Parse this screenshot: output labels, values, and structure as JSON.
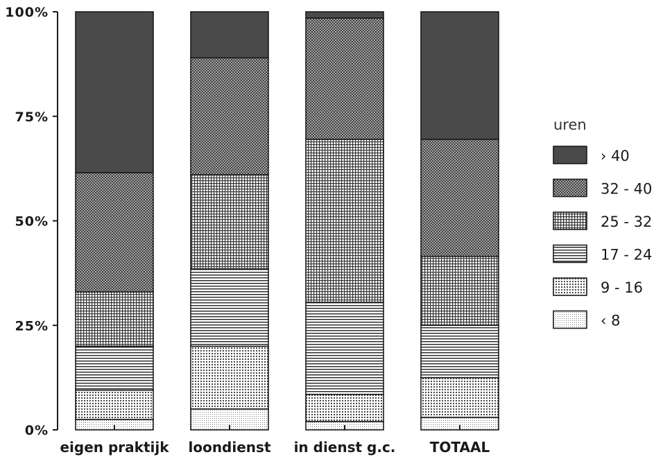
{
  "chart_data": {
    "type": "bar",
    "stacked": true,
    "normalized_percent": true,
    "categories": [
      "eigen praktijk",
      "loondienst",
      "in dienst g.c.",
      "TOTAAL"
    ],
    "series": [
      {
        "name": "‹ 8",
        "pattern": "fine-dots",
        "values": [
          2.5,
          5,
          2,
          3
        ]
      },
      {
        "name": "9 - 16",
        "pattern": "dots",
        "values": [
          7,
          15,
          6.5,
          9.5
        ]
      },
      {
        "name": "17 - 24",
        "pattern": "hlines",
        "values": [
          10.5,
          18.5,
          22,
          12.5
        ]
      },
      {
        "name": "25 - 32",
        "pattern": "grid",
        "values": [
          13,
          22.5,
          39,
          16.5
        ]
      },
      {
        "name": "32 - 40",
        "pattern": "crosshatch",
        "values": [
          28.5,
          28,
          29,
          28
        ]
      },
      {
        "name": "› 40",
        "pattern": "solid-dark",
        "values": [
          38.5,
          11,
          1.5,
          30.5
        ]
      }
    ],
    "yticks": [
      "0%",
      "25%",
      "50%",
      "75%",
      "100%"
    ],
    "ylim": [
      0,
      100
    ],
    "legend_title": "uren",
    "legend_position": "right",
    "grid": false
  },
  "colors": {
    "dark": "#4a4a4a",
    "ink": "#1a1a1a",
    "background": "#ffffff"
  }
}
